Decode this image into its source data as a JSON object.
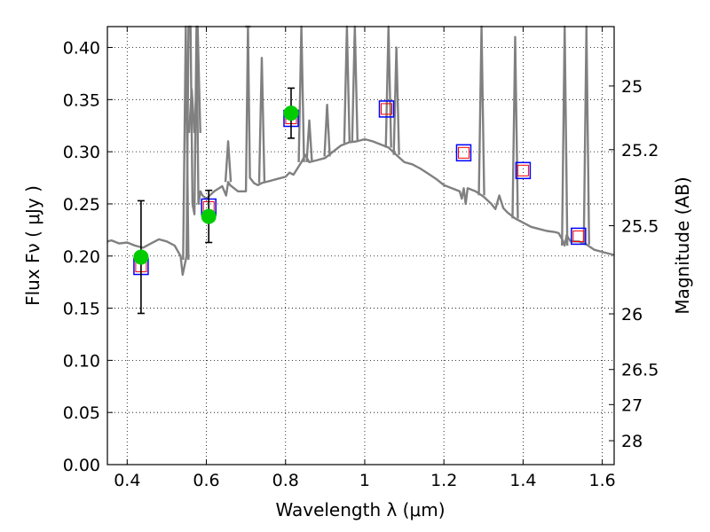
{
  "chart_data": {
    "type": "line",
    "xlabel": "Wavelength  λ (μm)",
    "ylabel": "Flux  Fν  ( μJy )",
    "y2label": "Magnitude (AB)",
    "xlim": [
      0.35,
      1.63
    ],
    "ylim": [
      0.0,
      0.42
    ],
    "grid": true,
    "grid_style": "dotted",
    "x_ticks": [
      0.4,
      0.6,
      0.8,
      1.0,
      1.2,
      1.4,
      1.6
    ],
    "x_tick_labels": [
      "0.4",
      "0.6",
      "0.8",
      "1",
      "1.2",
      "1.4",
      "1.6"
    ],
    "y_ticks": [
      0.0,
      0.05,
      0.1,
      0.15,
      0.2,
      0.25,
      0.3,
      0.35,
      0.4
    ],
    "y_tick_labels": [
      "0.00",
      "0.05",
      "0.10",
      "0.15",
      "0.20",
      "0.25",
      "0.30",
      "0.35",
      "0.40"
    ],
    "y2_ticks": [
      {
        "mag": 25.0,
        "label": "25"
      },
      {
        "mag": 25.2,
        "label": "25.2"
      },
      {
        "mag": 25.5,
        "label": "25.5"
      },
      {
        "mag": 26.0,
        "label": "26"
      },
      {
        "mag": 26.5,
        "label": "26.5"
      },
      {
        "mag": 27.0,
        "label": "27"
      },
      {
        "mag": 28.0,
        "label": "28"
      }
    ],
    "colors": {
      "model": "#808080",
      "observed": "#00cc00",
      "model_box": "#0000ff",
      "model_box_inner": "#ff0000",
      "errorbar": "#000000"
    },
    "model_spectrum": {
      "x": [
        0.35,
        0.36,
        0.38,
        0.4,
        0.42,
        0.44,
        0.46,
        0.48,
        0.5,
        0.52,
        0.535,
        0.54,
        0.55,
        0.555,
        0.56,
        0.565,
        0.57,
        0.575,
        0.58,
        0.585,
        0.59,
        0.6,
        0.62,
        0.64,
        0.65,
        0.655,
        0.66,
        0.68,
        0.7,
        0.705,
        0.71,
        0.72,
        0.73,
        0.74,
        0.76,
        0.78,
        0.8,
        0.81,
        0.82,
        0.84,
        0.85,
        0.86,
        0.88,
        0.9,
        0.92,
        0.94,
        0.96,
        0.98,
        1.0,
        1.02,
        1.04,
        1.06,
        1.08,
        1.1,
        1.12,
        1.14,
        1.16,
        1.18,
        1.2,
        1.22,
        1.24,
        1.245,
        1.25,
        1.255,
        1.26,
        1.28,
        1.3,
        1.32,
        1.33,
        1.34,
        1.35,
        1.36,
        1.38,
        1.4,
        1.42,
        1.44,
        1.46,
        1.48,
        1.49,
        1.5,
        1.505,
        1.51,
        1.52,
        1.54,
        1.56,
        1.58,
        1.6,
        1.63
      ],
      "y": [
        0.214,
        0.215,
        0.212,
        0.213,
        0.21,
        0.208,
        0.212,
        0.216,
        0.214,
        0.21,
        0.2,
        0.182,
        0.2,
        0.42,
        0.42,
        0.25,
        0.24,
        0.42,
        0.25,
        0.262,
        0.258,
        0.255,
        0.262,
        0.267,
        0.258,
        0.271,
        0.268,
        0.262,
        0.262,
        0.42,
        0.275,
        0.27,
        0.268,
        0.27,
        0.272,
        0.274,
        0.276,
        0.28,
        0.278,
        0.29,
        0.297,
        0.29,
        0.292,
        0.294,
        0.3,
        0.306,
        0.309,
        0.31,
        0.312,
        0.31,
        0.307,
        0.304,
        0.297,
        0.29,
        0.288,
        0.284,
        0.279,
        0.274,
        0.268,
        0.265,
        0.262,
        0.255,
        0.265,
        0.25,
        0.265,
        0.262,
        0.257,
        0.25,
        0.245,
        0.258,
        0.246,
        0.242,
        0.236,
        0.232,
        0.228,
        0.226,
        0.224,
        0.223,
        0.222,
        0.215,
        0.21,
        0.22,
        0.214,
        0.214,
        0.211,
        0.206,
        0.204,
        0.201
      ]
    },
    "model_lines": [
      {
        "x": 0.548,
        "y": 0.42
      },
      {
        "x": 0.563,
        "y": 0.36
      },
      {
        "x": 0.578,
        "y": 0.42
      },
      {
        "x": 0.655,
        "y": 0.31
      },
      {
        "x": 0.705,
        "y": 0.42
      },
      {
        "x": 0.74,
        "y": 0.39
      },
      {
        "x": 0.84,
        "y": 0.42
      },
      {
        "x": 0.86,
        "y": 0.33
      },
      {
        "x": 0.905,
        "y": 0.345
      },
      {
        "x": 0.955,
        "y": 0.42
      },
      {
        "x": 0.975,
        "y": 0.42
      },
      {
        "x": 1.06,
        "y": 0.42
      },
      {
        "x": 1.08,
        "y": 0.4
      },
      {
        "x": 1.295,
        "y": 0.42
      },
      {
        "x": 1.38,
        "y": 0.41
      },
      {
        "x": 1.505,
        "y": 0.42
      },
      {
        "x": 1.56,
        "y": 0.42
      }
    ],
    "observed": [
      {
        "x": 0.435,
        "y": 0.199,
        "yerr": 0.054
      },
      {
        "x": 0.606,
        "y": 0.238,
        "yerr": 0.025
      },
      {
        "x": 0.814,
        "y": 0.337,
        "yerr": 0.024
      }
    ],
    "model_photometry": [
      {
        "x": 0.435,
        "y": 0.19
      },
      {
        "x": 0.606,
        "y": 0.247
      },
      {
        "x": 0.814,
        "y": 0.332
      },
      {
        "x": 1.055,
        "y": 0.341
      },
      {
        "x": 1.25,
        "y": 0.299
      },
      {
        "x": 1.4,
        "y": 0.282
      },
      {
        "x": 1.54,
        "y": 0.219
      }
    ]
  }
}
